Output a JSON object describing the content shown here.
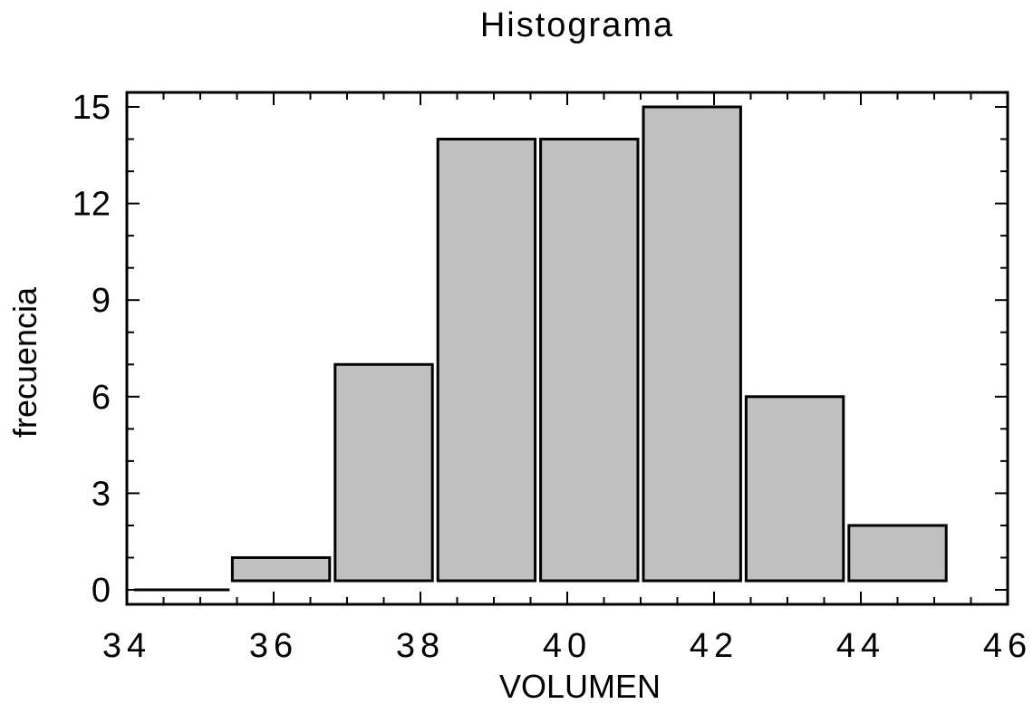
{
  "chart_data": {
    "type": "bar",
    "title": "Histograma",
    "xlabel": "VOLUMEN",
    "ylabel": "frecuencia",
    "xlim": [
      34,
      46
    ],
    "ylim": [
      0,
      15
    ],
    "xticks": [
      34,
      36,
      38,
      40,
      42,
      44,
      46
    ],
    "yticks": [
      0,
      3,
      6,
      9,
      12,
      15
    ],
    "bins": [
      {
        "start": 34.0,
        "end": 35.4,
        "value": 0
      },
      {
        "start": 35.4,
        "end": 36.8,
        "value": 1
      },
      {
        "start": 36.8,
        "end": 38.2,
        "value": 7
      },
      {
        "start": 38.2,
        "end": 39.6,
        "value": 14
      },
      {
        "start": 39.6,
        "end": 41.0,
        "value": 14
      },
      {
        "start": 41.0,
        "end": 42.4,
        "value": 15
      },
      {
        "start": 42.4,
        "end": 43.8,
        "value": 6
      },
      {
        "start": 43.8,
        "end": 45.2,
        "value": 2
      }
    ],
    "bar_color": "#c0c0c0",
    "edge_color": "#000000",
    "grid": false
  }
}
